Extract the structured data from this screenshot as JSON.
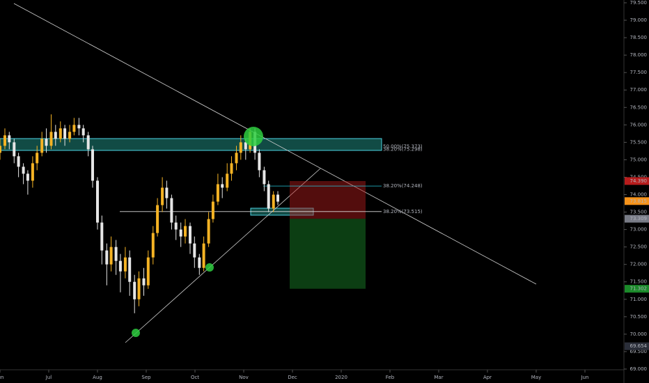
{
  "chart_data": {
    "type": "candlestick",
    "x": [
      0.0,
      0.1,
      0.19,
      0.29,
      0.38,
      0.48,
      0.57,
      0.67,
      0.76,
      0.86,
      0.95,
      1.05,
      1.14,
      1.24,
      1.33,
      1.43,
      1.52,
      1.62,
      1.71,
      1.81,
      1.9,
      2.0,
      2.09,
      2.19,
      2.28,
      2.38,
      2.47,
      2.57,
      2.66,
      2.76,
      2.85,
      2.95,
      3.04,
      3.14,
      3.23,
      3.33,
      3.42,
      3.52,
      3.61,
      3.71,
      3.8,
      3.9,
      3.99,
      4.09,
      4.18,
      4.28,
      4.37,
      4.47,
      4.56,
      4.66,
      4.75,
      4.85,
      4.94,
      5.04,
      5.13,
      5.23,
      5.32,
      5.42,
      5.51,
      5.61,
      5.7
    ],
    "open": [
      75.2,
      75.4,
      75.7,
      75.5,
      75.1,
      74.8,
      74.6,
      74.4,
      74.9,
      75.2,
      75.6,
      75.4,
      75.8,
      75.6,
      75.9,
      75.6,
      75.8,
      76.0,
      75.9,
      75.7,
      75.3,
      74.4,
      73.2,
      72.4,
      72.0,
      72.5,
      72.1,
      71.8,
      72.2,
      71.5,
      71.0,
      71.6,
      71.4,
      72.2,
      72.9,
      73.7,
      74.2,
      73.9,
      73.2,
      73.0,
      72.8,
      73.1,
      72.6,
      72.2,
      71.9,
      72.6,
      73.3,
      73.8,
      74.3,
      74.2,
      74.6,
      74.9,
      75.2,
      75.5,
      75.3,
      75.8,
      75.2,
      74.7,
      74.3,
      73.6,
      74.0
    ],
    "high": [
      75.6,
      75.9,
      75.8,
      75.6,
      75.2,
      74.9,
      74.7,
      75.1,
      75.4,
      75.8,
      75.9,
      76.3,
      76.0,
      76.1,
      76.0,
      76.0,
      76.2,
      76.2,
      76.0,
      75.8,
      75.4,
      74.5,
      73.4,
      72.6,
      72.8,
      72.7,
      72.3,
      72.5,
      72.4,
      71.7,
      71.8,
      71.9,
      72.4,
      73.1,
      73.9,
      74.5,
      74.4,
      74.0,
      73.4,
      73.2,
      73.3,
      73.2,
      72.8,
      72.3,
      72.8,
      73.5,
      74.0,
      74.6,
      74.5,
      74.9,
      75.1,
      75.4,
      75.7,
      75.6,
      75.9,
      75.9,
      75.3,
      74.8,
      74.4,
      74.1,
      74.1
    ],
    "low": [
      75.0,
      75.3,
      75.3,
      74.9,
      74.5,
      74.3,
      74.0,
      74.2,
      74.7,
      75.1,
      75.2,
      75.3,
      75.4,
      75.5,
      75.4,
      75.5,
      75.7,
      75.7,
      75.5,
      75.1,
      74.2,
      73.0,
      72.0,
      71.4,
      71.8,
      71.7,
      71.2,
      71.6,
      71.1,
      70.6,
      70.8,
      71.1,
      71.3,
      72.0,
      72.8,
      73.5,
      73.6,
      73.0,
      72.7,
      72.5,
      72.6,
      72.3,
      71.9,
      71.7,
      71.8,
      72.5,
      73.2,
      73.7,
      73.9,
      74.1,
      74.4,
      74.7,
      75.0,
      75.0,
      75.2,
      75.0,
      74.5,
      74.1,
      73.5,
      73.5,
      73.7
    ],
    "close": [
      75.4,
      75.7,
      75.5,
      75.1,
      74.8,
      74.6,
      74.4,
      74.9,
      75.2,
      75.6,
      75.4,
      75.8,
      75.6,
      75.9,
      75.6,
      75.8,
      76.0,
      75.9,
      75.7,
      75.3,
      74.4,
      73.2,
      72.4,
      72.0,
      72.5,
      72.1,
      71.8,
      72.2,
      71.5,
      71.0,
      71.6,
      71.4,
      72.2,
      72.9,
      73.7,
      74.2,
      73.9,
      73.2,
      73.0,
      72.8,
      73.1,
      72.6,
      72.2,
      71.9,
      72.6,
      73.3,
      73.8,
      74.3,
      74.2,
      74.6,
      74.9,
      75.2,
      75.5,
      75.3,
      75.8,
      75.2,
      74.7,
      74.3,
      73.6,
      74.0,
      73.8
    ],
    "up_color": "#f5b324",
    "down_color": "#e6e6e6",
    "xlim": [
      0,
      12.8
    ],
    "xticks": [
      {
        "value": 0,
        "label": "Jun"
      },
      {
        "value": 1,
        "label": "Jul"
      },
      {
        "value": 2,
        "label": "Aug"
      },
      {
        "value": 3,
        "label": "Sep"
      },
      {
        "value": 4,
        "label": "Oct"
      },
      {
        "value": 5,
        "label": "Nov"
      },
      {
        "value": 6,
        "label": "Dec"
      },
      {
        "value": 7,
        "label": "2020"
      },
      {
        "value": 8,
        "label": "Feb"
      },
      {
        "value": 9,
        "label": "Mar"
      },
      {
        "value": 10,
        "label": "Apr"
      },
      {
        "value": 11,
        "label": "May"
      },
      {
        "value": 12,
        "label": "Jun"
      }
    ],
    "ylim": [
      68.7,
      79.58
    ],
    "yticks": [
      {
        "value": 69,
        "label": "69.000"
      },
      {
        "value": 69.5,
        "label": "69.500"
      },
      {
        "value": 70,
        "label": "70.000"
      },
      {
        "value": 70.5,
        "label": "70.500"
      },
      {
        "value": 71,
        "label": "71.000"
      },
      {
        "value": 71.5,
        "label": "71.500"
      },
      {
        "value": 72,
        "label": "72.000"
      },
      {
        "value": 72.5,
        "label": "72.500"
      },
      {
        "value": 73,
        "label": "73.000"
      },
      {
        "value": 73.5,
        "label": "73.500"
      },
      {
        "value": 74,
        "label": "74.000"
      },
      {
        "value": 74.5,
        "label": "74.500"
      },
      {
        "value": 75,
        "label": "75.000"
      },
      {
        "value": 75.5,
        "label": "75.500"
      },
      {
        "value": 76,
        "label": "76.000"
      },
      {
        "value": 76.5,
        "label": "76.500"
      },
      {
        "value": 77,
        "label": "77.000"
      },
      {
        "value": 77.5,
        "label": "77.500"
      },
      {
        "value": 78,
        "label": "78.000"
      },
      {
        "value": 78.5,
        "label": "78.500"
      },
      {
        "value": 79,
        "label": "79.000"
      },
      {
        "value": 79.5,
        "label": "79.500"
      }
    ],
    "levels": [
      {
        "label": "50.00%(75.373)",
        "value": 75.373,
        "color": "#f57c00"
      },
      {
        "label": "38.20%(75.298)",
        "value": 75.298,
        "color": "#e0e0e0"
      },
      {
        "label": "38.20%(74.248)",
        "value": 74.248,
        "color": "#26c6da"
      },
      {
        "label": "38.20%(73.515)",
        "value": 73.515,
        "color": "#e0e0e0"
      }
    ],
    "price_tags": [
      {
        "label": "74.390",
        "value": 74.39,
        "color": "#b71c1c"
      },
      {
        "label": "73.815",
        "value": 73.815,
        "color": "#f7931a"
      },
      {
        "label": "73.309",
        "value": 73.309,
        "color": "#787b86"
      },
      {
        "label": "71.302",
        "value": 71.302,
        "color": "#1b8a2a"
      },
      {
        "label": "69.654",
        "value": 69.654,
        "color": "#2a2e39"
      }
    ]
  }
}
